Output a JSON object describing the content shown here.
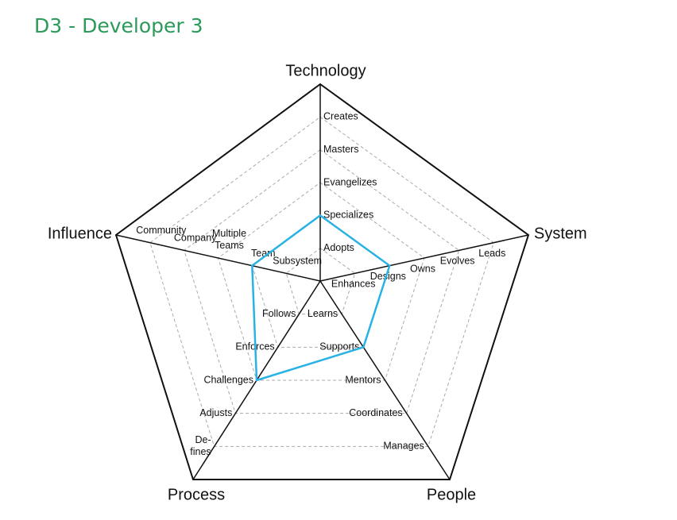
{
  "chart_data": {
    "type": "radar",
    "title": "D3 - Developer 3",
    "axes": [
      {
        "name": "Technology",
        "levels": [
          "Adopts",
          "Specializes",
          "Evangelizes",
          "Masters",
          "Creates"
        ]
      },
      {
        "name": "System",
        "levels": [
          "Enhances",
          "Designs",
          "Owns",
          "Evolves",
          "Leads"
        ]
      },
      {
        "name": "People",
        "levels": [
          "Learns",
          "Supports",
          "Mentors",
          "Coordinates",
          "Manages"
        ]
      },
      {
        "name": "Process",
        "levels": [
          "Follows",
          "Enforces",
          "Challenges",
          "Adjusts",
          "De-fines"
        ]
      },
      {
        "name": "Influence",
        "levels": [
          "Subsystem",
          "Team",
          "Multiple Teams",
          "Company",
          "Community"
        ]
      }
    ],
    "series": [
      {
        "color": "#29b2e4",
        "values": [
          2,
          2,
          2,
          3,
          2
        ]
      }
    ]
  }
}
